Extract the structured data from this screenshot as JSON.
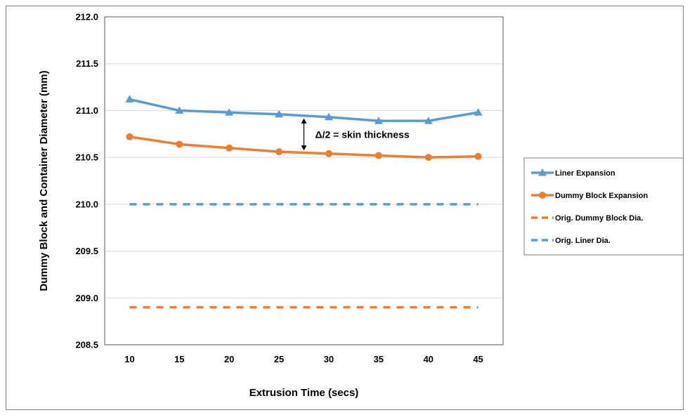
{
  "chart_data": {
    "type": "line",
    "title": "",
    "xlabel": "Extrusion Time (secs)",
    "ylabel": "Dummy Block and Container Diameter (mm)",
    "categories": [
      "10",
      "15",
      "20",
      "25",
      "30",
      "35",
      "40",
      "45"
    ],
    "x": [
      10,
      15,
      20,
      25,
      30,
      35,
      40,
      45
    ],
    "ylim": [
      208.5,
      212.0
    ],
    "yticks": [
      "208.5",
      "209.0",
      "209.5",
      "210.0",
      "210.5",
      "211.0",
      "211.5",
      "212.0"
    ],
    "grid": true,
    "legend_position": "right",
    "series": [
      {
        "name": "Liner Expansion",
        "values": [
          211.12,
          211.0,
          210.98,
          210.96,
          210.93,
          210.89,
          210.89,
          210.98
        ],
        "color": "#5b9bd5",
        "style": "solid",
        "marker": "triangle"
      },
      {
        "name": "Dummy Block Expansion",
        "values": [
          210.72,
          210.64,
          210.6,
          210.56,
          210.54,
          210.52,
          210.5,
          210.51
        ],
        "color": "#ed7d31",
        "style": "solid",
        "marker": "circle"
      },
      {
        "name": "Orig. Dummy Block Dia.",
        "values": [
          208.9,
          208.9,
          208.9,
          208.9,
          208.9,
          208.9,
          208.9,
          208.9
        ],
        "color": "#ed7d31",
        "style": "dashed",
        "marker": "none"
      },
      {
        "name": "Orig. Liner Dia.",
        "values": [
          210.0,
          210.0,
          210.0,
          210.0,
          210.0,
          210.0,
          210.0,
          210.0
        ],
        "color": "#5b9bd5",
        "style": "dashed",
        "marker": "none"
      }
    ],
    "annotations": [
      {
        "text": "Δ/2 = skin thickness",
        "x": 27.5,
        "y_from": 210.56,
        "y_to": 210.93
      }
    ]
  }
}
